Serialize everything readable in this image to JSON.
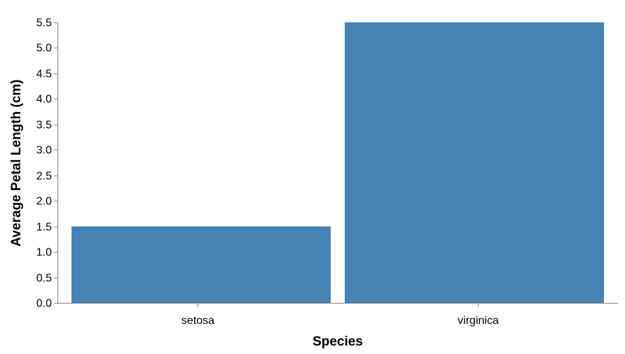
{
  "chart_data": {
    "type": "bar",
    "title": "",
    "xlabel": "Species",
    "ylabel": "Average Petal Length (cm)",
    "categories": [
      "setosa",
      "virginica"
    ],
    "values": [
      1.5,
      5.5
    ],
    "ylim": [
      0,
      5.5
    ],
    "yticks": [
      "0.0",
      "0.5",
      "1.0",
      "1.5",
      "2.0",
      "2.5",
      "3.0",
      "3.5",
      "4.0",
      "4.5",
      "5.0",
      "5.5"
    ],
    "grid": false,
    "legend": "none",
    "colors": {
      "bar": "#4682b4",
      "axis": "#888888",
      "text": "#000000"
    }
  }
}
